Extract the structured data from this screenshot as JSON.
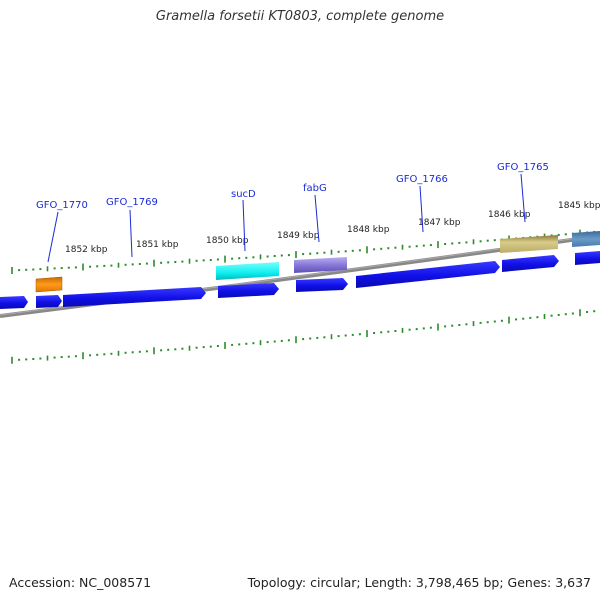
{
  "title": "Gramella forsetii KT0803, complete genome",
  "accession": "Accession: NC_008571",
  "summary": "Topology: circular; Length: 3,798,465 bp; Genes: 3,637",
  "colors": {
    "background": "#ffffff",
    "backbone": "#8a8a8a",
    "tick": "#2e8b2e",
    "gene_forward": "#1111ee",
    "label": "#1a2bd6"
  },
  "scale_labels": [
    "1852 kbp",
    "1851 kbp",
    "1850 kbp",
    "1849 kbp",
    "1848 kbp",
    "1847 kbp",
    "1846 kbp",
    "1845 kbp"
  ],
  "gene_labels": [
    "GFO_1770",
    "GFO_1769",
    "sucD",
    "fabG",
    "GFO_1766",
    "GFO_1765"
  ]
}
